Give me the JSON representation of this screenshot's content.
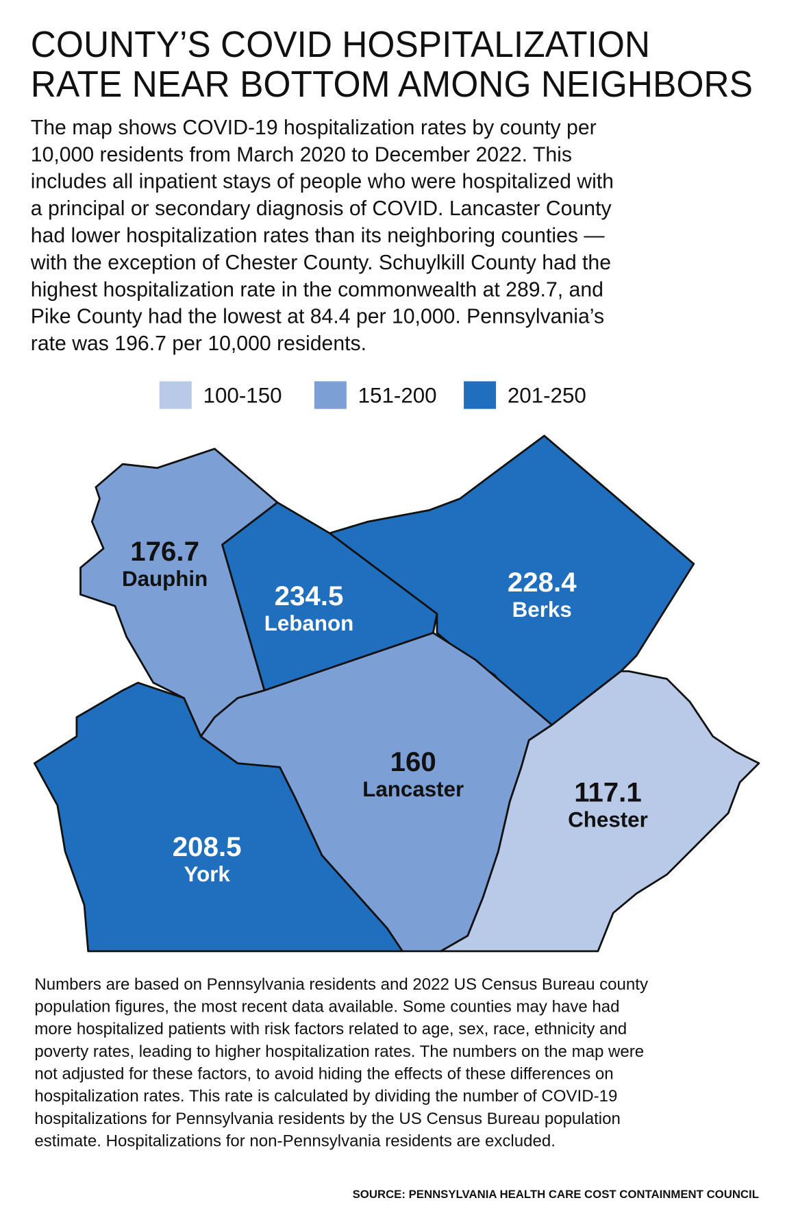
{
  "header": {
    "title_lines": [
      "COUNTY’S COVID HOSPITALIZATION",
      "RATE NEAR BOTTOM AMONG NEIGHBORS"
    ]
  },
  "description_lines": [
    "The map shows COVID-19 hospitalization rates by county per",
    "10,000 residents from March 2020 to December 2022. This",
    "includes all inpatient stays of people who were hospitalized with",
    "a principal or secondary diagnosis of COVID. Lancaster County",
    "had lower hospitalization rates than its neighboring counties —",
    "with the exception of Chester County. Schuylkill County had the",
    "highest hospitalization rate in the commonwealth at 289.7, and",
    "Pike County had the lowest at 84.4 per 10,000. Pennsylvania’s",
    "rate was 196.7 per 10,000 residents."
  ],
  "legend": [
    {
      "label": "100-150",
      "color": "#b9c9e8"
    },
    {
      "label": "151-200",
      "color": "#7c9fd5"
    },
    {
      "label": "201-250",
      "color": "#1f6fbe"
    }
  ],
  "counties": [
    {
      "name": "Dauphin",
      "value": 176.7,
      "color": "#7c9fd5",
      "text_color": "#111111"
    },
    {
      "name": "Lebanon",
      "value": 234.5,
      "color": "#1f6fbe",
      "text_color": "#ffffff"
    },
    {
      "name": "Berks",
      "value": 228.4,
      "color": "#1f6fbe",
      "text_color": "#ffffff"
    },
    {
      "name": "Lancaster",
      "value": 160,
      "color": "#7c9fd5",
      "text_color": "#111111"
    },
    {
      "name": "York",
      "value": 208.5,
      "color": "#1f6fbe",
      "text_color": "#ffffff"
    },
    {
      "name": "Chester",
      "value": 117.1,
      "color": "#b9c9e8",
      "text_color": "#111111"
    }
  ],
  "footnote_lines": [
    "Numbers are based on Pennsylvania residents and 2022 US Census Bureau county",
    "population figures, the most recent data available. Some counties may have had",
    "more hospitalized patients with risk factors related to age, sex, race, ethnicity and",
    "poverty rates, leading to higher hospitalization rates. The numbers on the map were",
    "not adjusted for these factors, to avoid hiding the effects of these differences on",
    "hospitalization rates. This rate is calculated by dividing the number of COVID-19",
    "hospitalizations for Pennsylvania residents by the US Census Bureau population",
    "estimate. Hospitalizations for non-Pennsylvania residents are excluded."
  ],
  "source": "SOURCE: PENNSYLVANIA HEALTH CARE COST CONTAINMENT COUNCIL"
}
